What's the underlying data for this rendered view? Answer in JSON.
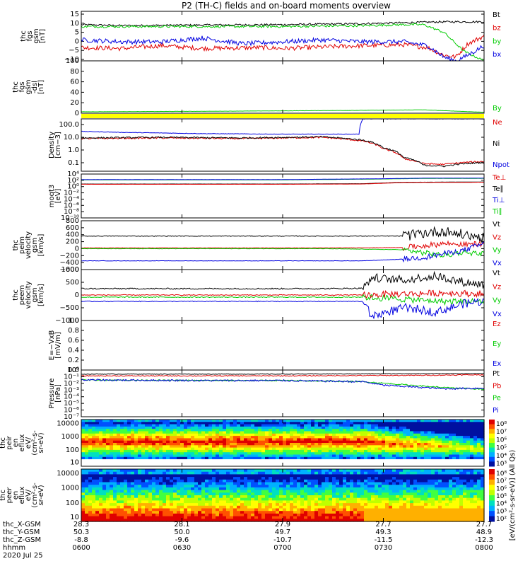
{
  "title": "P2 (TH-C) fields and on-board moments overview",
  "colors": {
    "black": "#000000",
    "red": "#e00000",
    "green": "#00cc00",
    "blue": "#0000e0",
    "yellow": "#ffff00"
  },
  "chart_data": [
    {
      "type": "line",
      "ylabel": [
        "thc",
        "fgs",
        "gsm",
        "[nT]"
      ],
      "yticks": [
        "15",
        "10",
        "5",
        "0",
        "−5",
        "−10"
      ],
      "ylim": [
        -10,
        16
      ],
      "legend": [
        {
          "name": "Bt",
          "color": "#000000"
        },
        {
          "name": "bz",
          "color": "#e00000"
        },
        {
          "name": "by",
          "color": "#00cc00"
        },
        {
          "name": "bx",
          "color": "#0000e0"
        }
      ],
      "series": [
        {
          "name": "Bt",
          "color": "#000000",
          "x": [
            0,
            0.1,
            0.3,
            0.5,
            0.7,
            0.8,
            0.9,
            0.95,
            1
          ],
          "y": [
            9,
            8.5,
            8.8,
            9,
            9.5,
            10,
            10.5,
            10.5,
            10.5
          ],
          "noise": 0.5
        },
        {
          "name": "bz",
          "color": "#e00000",
          "x": [
            0,
            0.1,
            0.2,
            0.3,
            0.45,
            0.5,
            0.7,
            0.8,
            0.86,
            0.9,
            0.93,
            0.96,
            1
          ],
          "y": [
            -3,
            -3.5,
            -2,
            -3.5,
            -3,
            -3.5,
            -2,
            -1.5,
            -3,
            -7,
            -8,
            -1,
            3
          ],
          "noise": 1.2
        },
        {
          "name": "by",
          "color": "#00cc00",
          "x": [
            0,
            0.1,
            0.3,
            0.5,
            0.7,
            0.8,
            0.85,
            0.9,
            0.95,
            1
          ],
          "y": [
            8,
            8,
            8,
            8,
            8.5,
            9,
            9,
            5,
            -5,
            -10
          ],
          "noise": 0.6
        },
        {
          "name": "bx",
          "color": "#0000e0",
          "x": [
            0,
            0.1,
            0.2,
            0.3,
            0.4,
            0.5,
            0.6,
            0.7,
            0.8,
            0.86,
            0.9,
            0.93,
            0.96,
            1
          ],
          "y": [
            1,
            0,
            0,
            2,
            -1,
            0,
            1,
            0,
            0,
            -2,
            -8,
            -10,
            -7,
            -2
          ],
          "noise": 1.2
        }
      ]
    },
    {
      "type": "line",
      "ylabel": [
        "thc",
        "fgs",
        "gsm",
        "-dsl",
        "[nT]"
      ],
      "yticks": [
        "100",
        "80",
        "60",
        "40",
        "20",
        "0"
      ],
      "ylim": [
        -10,
        100
      ],
      "legend": [
        {
          "name": "By",
          "color": "#00cc00"
        }
      ],
      "series": [
        {
          "name": "By",
          "color": "#00cc00",
          "x": [
            0,
            0.3,
            0.5,
            0.7,
            0.85,
            1
          ],
          "y": [
            -7,
            -6,
            -5,
            -4,
            -3,
            -8
          ],
          "noise": 0.2
        }
      ]
    },
    {
      "type": "line",
      "ylabel": [
        "Density",
        "[cm−3]"
      ],
      "yticks": [
        "100.0",
        "10.0",
        "1.0",
        "0.1"
      ],
      "log": true,
      "ylim": [
        0.02,
        300
      ],
      "legend": [
        {
          "name": "Ne",
          "color": "#e00000"
        },
        {
          "name": "Ni",
          "color": "#000000"
        },
        {
          "name": "Npot",
          "color": "#0000e0"
        }
      ],
      "series": [
        {
          "name": "Npot",
          "color": "#0000e0",
          "x": [
            0,
            0.1,
            0.3,
            0.5,
            0.69,
            0.7
          ],
          "y": [
            30,
            25,
            20,
            18,
            18,
            300
          ],
          "noise": 0.01
        },
        {
          "name": "Ne",
          "color": "#e00000",
          "x": [
            0,
            0.2,
            0.4,
            0.6,
            0.7,
            0.75,
            0.8,
            0.85,
            0.9,
            0.95,
            1
          ],
          "y": [
            8,
            9,
            8,
            10,
            5,
            1.2,
            0.2,
            0.08,
            0.07,
            0.1,
            0.12
          ],
          "noise": 0.03
        },
        {
          "name": "Ni",
          "color": "#000000",
          "x": [
            0,
            0.2,
            0.4,
            0.6,
            0.7,
            0.75,
            0.8,
            0.85,
            0.9,
            0.95,
            1
          ],
          "y": [
            9,
            10,
            9,
            11,
            6,
            1.5,
            0.25,
            0.06,
            0.05,
            0.08,
            0.1
          ],
          "noise": 0.03
        }
      ]
    },
    {
      "type": "line",
      "ylabel": [
        "moqt3",
        "[eV]"
      ],
      "yticks": [
        "10⁴",
        "10²",
        "10⁰",
        "10⁻²",
        "10⁻⁴",
        "10⁻⁶",
        "10⁻⁸",
        "10⁻¹⁰"
      ],
      "ylim": [
        -10,
        5
      ],
      "legend": [
        {
          "name": "Te⊥",
          "color": "#e00000"
        },
        {
          "name": "Te∥",
          "color": "#000000"
        },
        {
          "name": "Ti⊥",
          "color": "#0000e0"
        },
        {
          "name": "Ti∥",
          "color": "#00cc00"
        }
      ],
      "series": [
        {
          "name": "Ti∥",
          "color": "#00cc00",
          "x": [
            0,
            0.5,
            0.75,
            0.85,
            1
          ],
          "y": [
            3,
            3,
            3.3,
            3.5,
            3.5
          ],
          "noise": 0.02
        },
        {
          "name": "Ti⊥",
          "color": "#0000e0",
          "x": [
            0,
            0.5,
            0.75,
            0.85,
            1
          ],
          "y": [
            3.1,
            3.1,
            3.4,
            3.6,
            3.6
          ],
          "noise": 0.02
        },
        {
          "name": "Te∥",
          "color": "#000000",
          "x": [
            0,
            0.5,
            0.7,
            0.8,
            1
          ],
          "y": [
            1.6,
            1.6,
            1.7,
            2.2,
            2.3
          ],
          "noise": 0.02
        },
        {
          "name": "Te⊥",
          "color": "#e00000",
          "x": [
            0,
            0.5,
            0.7,
            0.8,
            1
          ],
          "y": [
            1.5,
            1.5,
            1.6,
            2.1,
            2.2
          ],
          "noise": 0.02
        }
      ]
    },
    {
      "type": "line",
      "ylabel": [
        "thc",
        "peim",
        "velocity",
        "gsm",
        "[km/s]"
      ],
      "yticks": [
        "800",
        "600",
        "400",
        "200",
        "0",
        "−200",
        "−400",
        "−600"
      ],
      "ylim": [
        -600,
        800
      ],
      "legend": [
        {
          "name": "Vt",
          "color": "#000000"
        },
        {
          "name": "Vz",
          "color": "#e00000"
        },
        {
          "name": "Vy",
          "color": "#00cc00"
        },
        {
          "name": "Vx",
          "color": "#0000e0"
        }
      ],
      "series": [
        {
          "name": "Vt",
          "color": "#000000",
          "x": [
            0,
            0.3,
            0.6,
            0.8,
            0.85,
            0.9,
            0.95,
            1
          ],
          "y": [
            360,
            360,
            360,
            360,
            450,
            500,
            400,
            300
          ],
          "noise": 10,
          "noise2": [
            0.8,
            1,
            150
          ]
        },
        {
          "name": "Vz",
          "color": "#e00000",
          "x": [
            0,
            0.3,
            0.6,
            0.8,
            0.85,
            0.9,
            0.95,
            1
          ],
          "y": [
            20,
            20,
            20,
            30,
            80,
            150,
            120,
            150
          ],
          "noise": 5,
          "noise2": [
            0.8,
            1,
            80
          ]
        },
        {
          "name": "Vy",
          "color": "#00cc00",
          "x": [
            0,
            0.3,
            0.6,
            0.8,
            0.85,
            0.9,
            0.95,
            1
          ],
          "y": [
            0,
            0,
            0,
            -30,
            -120,
            -200,
            -100,
            -150
          ],
          "noise": 5,
          "noise2": [
            0.8,
            1,
            80
          ]
        },
        {
          "name": "Vx",
          "color": "#0000e0",
          "x": [
            0,
            0.3,
            0.6,
            0.7,
            0.8,
            0.85,
            0.9,
            0.95,
            1
          ],
          "y": [
            -350,
            -350,
            -350,
            -350,
            -300,
            -250,
            -150,
            -50,
            150
          ],
          "noise": 5,
          "noise2": [
            0.8,
            1,
            80
          ]
        }
      ]
    },
    {
      "type": "line",
      "ylabel": [
        "thc",
        "peem",
        "velocity",
        "gsm",
        "[km/s]"
      ],
      "yticks": [
        "1000",
        "500",
        "0",
        "−500",
        "−1000"
      ],
      "ylim": [
        -1200,
        1200
      ],
      "legend": [
        {
          "name": "Vt",
          "color": "#000000"
        },
        {
          "name": "Vz",
          "color": "#e00000"
        },
        {
          "name": "Vy",
          "color": "#00cc00"
        },
        {
          "name": "Vx",
          "color": "#0000e0"
        }
      ],
      "series": [
        {
          "name": "Vt",
          "color": "#000000",
          "x": [
            0,
            0.3,
            0.6,
            0.7,
            0.72,
            0.8,
            0.88,
            0.95,
            1
          ],
          "y": [
            300,
            300,
            300,
            320,
            800,
            700,
            900,
            600,
            500
          ],
          "noise": 30,
          "noise2": [
            0.7,
            1,
            200
          ]
        },
        {
          "name": "Vy",
          "color": "#00cc00",
          "x": [
            0,
            0.3,
            0.6,
            0.7,
            0.8,
            0.9,
            1
          ],
          "y": [
            -100,
            -100,
            -100,
            -100,
            -200,
            -300,
            -300
          ],
          "noise": 20,
          "noise2": [
            0.7,
            1,
            150
          ]
        },
        {
          "name": "Vz",
          "color": "#e00000",
          "x": [
            0,
            0.3,
            0.6,
            0.7,
            0.8,
            0.9,
            1
          ],
          "y": [
            0,
            0,
            0,
            0,
            50,
            100,
            50
          ],
          "noise": 20,
          "noise2": [
            0.7,
            1,
            150
          ]
        },
        {
          "name": "Vx",
          "color": "#0000e0",
          "x": [
            0,
            0.3,
            0.6,
            0.7,
            0.72,
            0.8,
            0.88,
            0.95,
            1
          ],
          "y": [
            -300,
            -300,
            -300,
            -300,
            -1000,
            -600,
            -800,
            -400,
            -300
          ],
          "noise": 20,
          "noise2": [
            0.7,
            1,
            200
          ]
        }
      ]
    },
    {
      "type": "line",
      "ylabel": [
        "E=−VxB",
        "[mV/m]"
      ],
      "yticks": [
        "1.0",
        "0.8",
        "0.6",
        "0.4",
        "0.2",
        "0.0"
      ],
      "ylim": [
        0,
        1
      ],
      "legend": [
        {
          "name": "Ez",
          "color": "#e00000"
        },
        {
          "name": "Ey",
          "color": "#00cc00"
        },
        {
          "name": "Ex",
          "color": "#0000e0"
        }
      ],
      "series": []
    },
    {
      "type": "line",
      "ylabel": [
        "Pressure",
        "[nPa]"
      ],
      "yticks": [
        "10⁰",
        "10⁻¹",
        "10⁻²",
        "10⁻³",
        "10⁻⁴",
        "10⁻⁵",
        "10⁻⁶",
        "10⁻⁷"
      ],
      "ylim": [
        -7.5,
        0.5
      ],
      "legend": [
        {
          "name": "Pt",
          "color": "#000000"
        },
        {
          "name": "Pb",
          "color": "#e00000"
        },
        {
          "name": "Pe",
          "color": "#00cc00"
        },
        {
          "name": "Pi",
          "color": "#0000e0"
        }
      ],
      "series": [
        {
          "name": "Pt",
          "color": "#000000",
          "x": [
            0,
            0.5,
            1
          ],
          "y": [
            -0.2,
            -0.2,
            -0.1
          ],
          "noise": 0.05
        },
        {
          "name": "Pb",
          "color": "#e00000",
          "x": [
            0,
            0.5,
            0.85,
            1
          ],
          "y": [
            -0.5,
            -0.5,
            -0.4,
            -0.3
          ],
          "noise": 0.08
        },
        {
          "name": "Pe",
          "color": "#00cc00",
          "x": [
            0,
            0.3,
            0.5,
            0.7,
            0.8,
            0.9,
            1
          ],
          "y": [
            -1.2,
            -1.3,
            -1.3,
            -1.5,
            -2,
            -2.5,
            -2.8
          ],
          "noise": 0.1
        },
        {
          "name": "Pi",
          "color": "#0000e0",
          "x": [
            0,
            0.3,
            0.5,
            0.7,
            0.75,
            0.85,
            0.9,
            1
          ],
          "y": [
            -1.2,
            -1.3,
            -1.3,
            -1.5,
            -2.1,
            -2.5,
            -2.7,
            -2.6
          ],
          "noise": 0.15
        }
      ]
    },
    {
      "type": "heatmap",
      "ylabel": [
        "thc",
        "peir",
        "en",
        "eflux",
        "eV/",
        "(cm²-s-",
        "sr-eV)"
      ],
      "yticks": [
        "10000",
        "1000",
        "100",
        "10"
      ],
      "colorbar_ticks": [
        "10⁸",
        "10⁷",
        "10⁶",
        "10⁵",
        "10⁴",
        "10³"
      ]
    },
    {
      "type": "heatmap",
      "ylabel": [
        "thc",
        "peer",
        "en",
        "eflux",
        "eV/",
        "(cm²-s-",
        "sr-eV)"
      ],
      "yticks": [
        "10000",
        "1000",
        "100",
        "10"
      ],
      "colorbar_ticks": [
        "10⁸",
        "10⁷",
        "10⁶",
        "10⁵",
        "10⁴",
        "10³",
        "10²"
      ]
    }
  ],
  "colorbar_label": "[eV/(cm²-s-sr-eV)] (All Qs)",
  "xaxis": {
    "rows": [
      {
        "label": "thc_X-GSM",
        "values": [
          "28.3",
          "28.1",
          "27.9",
          "27.7",
          "27.7"
        ]
      },
      {
        "label": "thc_Y-GSM",
        "values": [
          "50.3",
          "50.0",
          "49.7",
          "49.3",
          "48.9"
        ]
      },
      {
        "label": "thc_Z-GSM",
        "values": [
          "-8.8",
          "-9.6",
          "-10.7",
          "-11.5",
          "-12.3"
        ]
      },
      {
        "label": "hhmm",
        "values": [
          "0600",
          "0630",
          "0700",
          "0730",
          "0800"
        ]
      }
    ],
    "date": "2020 Jul 25"
  }
}
